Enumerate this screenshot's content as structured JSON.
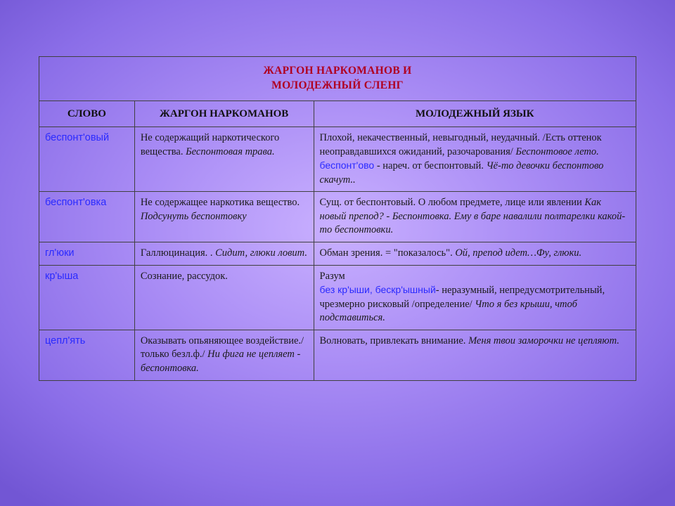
{
  "table": {
    "title_line1": "ЖАРГОН НАРКОМАНОВ И",
    "title_line2": "МОЛОДЕЖНЫЙ СЛЕНГ",
    "title_color": "#b00020",
    "border_color": "#404040",
    "headers": {
      "word": "СЛОВО",
      "jargon": "ЖАРГОН НАРКОМАНОВ",
      "youth": "МОЛОДЕЖНЫЙ ЯЗЫК"
    },
    "col_widths_pct": [
      16,
      30,
      54
    ],
    "word_color": "#2a2aff",
    "rows": [
      {
        "word": "беспонт'овый",
        "jargon_plain": "Не содержащий наркотического вещества. ",
        "jargon_ital": "Беспонтовая трава.",
        "youth_plain1": "Плохой, некачественный, невыгодный, неудачный. /Есть оттенок неоправдавшихся ожиданий, разочарования/ ",
        "youth_ital1": "Беспонтовое лето.",
        "youth_inline_word": "беспонт'ово",
        "youth_plain2": " - нареч. от беспонтовый. ",
        "youth_ital2": "Чё-то девочки беспонтово скачут.."
      },
      {
        "word": "беспонт'овка",
        "jargon_plain": "Не содержащее наркотика вещество. ",
        "jargon_ital": "Подсунуть беспонтовку",
        "youth_plain1": "Сущ. от беспонтовый. О любом предмете, лице или явлении ",
        "youth_ital1": "Как новый препод? - Беспонтовка. Ему в баре навалили полтарелки какой-то беспонтовки."
      },
      {
        "word": "гл'юки",
        "jargon_plain": "Галлюцинация. . ",
        "jargon_ital": "Сидит, глюки ловит.",
        "youth_plain1": "Обман зрения. = \"показалось\". ",
        "youth_ital1": "Ой, препод идет…Фу, глюки."
      },
      {
        "word": "кр'ыша",
        "jargon_plain": "Сознание, рассудок.",
        "jargon_ital": "",
        "youth_plain1": "Разум",
        "youth_inline_word": "без кр'ыши, бескр'ышный",
        "youth_plain2": "- неразумный, непредусмотрительный, чрезмерно рисковый /определение/ ",
        "youth_ital2": "Что я без крыши, чтоб подставиться."
      },
      {
        "word": "цепл'ять",
        "jargon_plain": "Оказывать опьяняющее воздействие./только безл.ф./ ",
        "jargon_ital": "Ни фига не цепляет - беспонтовка.",
        "youth_plain1": "Волновать, привлекать внимание. ",
        "youth_ital1": "Меня твои заморочки не цепляют."
      }
    ]
  }
}
